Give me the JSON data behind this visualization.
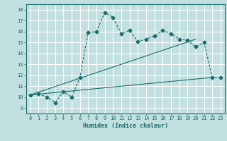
{
  "title": "",
  "xlabel": "Humidex (Indice chaleur)",
  "ylabel": "",
  "x_ticks": [
    0,
    1,
    2,
    3,
    4,
    5,
    6,
    7,
    8,
    9,
    10,
    11,
    12,
    13,
    14,
    15,
    16,
    17,
    18,
    19,
    20,
    21,
    22,
    23
  ],
  "y_ticks": [
    9,
    10,
    11,
    12,
    13,
    14,
    15,
    16,
    17,
    18
  ],
  "ylim": [
    8.5,
    18.5
  ],
  "xlim": [
    -0.5,
    23.5
  ],
  "bg_color": "#c2e0e0",
  "grid_color": "#ffffff",
  "line_color": "#1a6b6b",
  "series1_x": [
    0,
    1,
    2,
    3,
    4,
    5,
    6,
    7,
    8,
    9,
    10,
    11,
    12,
    13,
    14,
    15,
    16,
    17,
    18,
    19,
    20,
    21,
    22,
    23
  ],
  "series1_y": [
    10.2,
    10.3,
    10.0,
    9.5,
    10.5,
    10.0,
    11.8,
    15.9,
    16.0,
    17.75,
    17.3,
    15.8,
    16.1,
    15.1,
    15.3,
    15.6,
    16.1,
    15.8,
    15.3,
    15.2,
    14.6,
    15.0,
    11.8,
    11.8
  ],
  "series2_x": [
    0,
    22
  ],
  "series2_y": [
    10.2,
    11.8
  ],
  "series3_x": [
    0,
    20
  ],
  "series3_y": [
    10.2,
    15.3
  ],
  "marker": "D",
  "marker_size": 2.5,
  "linewidth": 0.8
}
